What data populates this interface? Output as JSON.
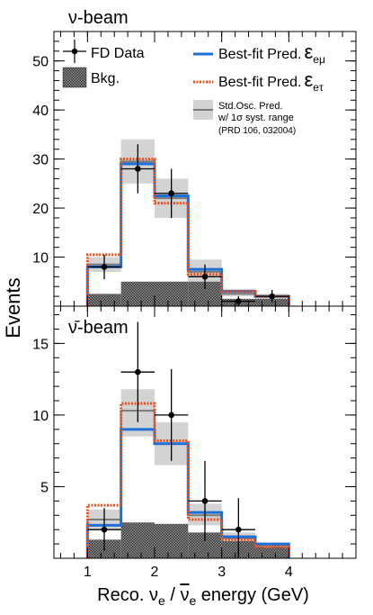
{
  "chart_data": [
    {
      "type": "step-histogram",
      "panel_label": "ν-beam",
      "x_edges": [
        1.0,
        1.5,
        2.0,
        2.5,
        3.0,
        3.5,
        4.0
      ],
      "ylim": [
        0,
        56
      ],
      "yticks": [
        10,
        20,
        30,
        40,
        50
      ],
      "ytick_labels": [
        "10",
        "20",
        "30",
        "40",
        "50"
      ],
      "data_points": {
        "x": [
          1.25,
          1.75,
          2.25,
          2.75,
          3.25,
          3.75
        ],
        "y": [
          8,
          28,
          23,
          6,
          1,
          2
        ],
        "yerr": [
          2.5,
          5.0,
          5.0,
          2.5,
          1.0,
          1.3
        ],
        "xerr": 0.25
      },
      "background": [
        2.5,
        5,
        5,
        5,
        1.5,
        1.5
      ],
      "best_fit_emu": [
        8,
        29,
        22.5,
        7.5,
        3,
        2
      ],
      "best_fit_etau": [
        10.5,
        30,
        21,
        6.5,
        3,
        2
      ],
      "std_osc": {
        "central": [
          8.5,
          29.5,
          22,
          7,
          2.5,
          2
        ],
        "band_low": [
          7,
          25,
          18,
          5,
          2,
          1.5
        ],
        "band_high": [
          10,
          34,
          26,
          9.5,
          3.5,
          2.5
        ]
      },
      "legend": {
        "data": "FD Data",
        "bkg": "Bkg.",
        "emu": "Best-fit Pred.",
        "emu_symbol": "ε",
        "emu_sub": "eμ",
        "etau": "Best-fit Pred.",
        "etau_symbol": "ε",
        "etau_sub": "eτ",
        "std_line1": "Std.Osc. Pred.",
        "std_line2": "w/ 1σ syst. range",
        "std_line3": "(PRD 106, 032004)"
      }
    },
    {
      "type": "step-histogram",
      "panel_label": "ν̄-beam",
      "x_edges": [
        1.0,
        1.5,
        2.0,
        2.5,
        3.0,
        3.5,
        4.0
      ],
      "ylim": [
        0,
        17.6
      ],
      "yticks": [
        5,
        10,
        15
      ],
      "ytick_labels": [
        "5",
        "10",
        "15"
      ],
      "data_points": {
        "x": [
          1.25,
          1.75,
          2.25,
          2.75,
          3.25
        ],
        "y": [
          2,
          13,
          10,
          4,
          2
        ],
        "yerr": [
          1.5,
          3.5,
          3.2,
          2.8,
          2.2
        ],
        "xerr": 0.25
      },
      "background": [
        1.3,
        2.5,
        2.4,
        1.8,
        1.2,
        0.8
      ],
      "best_fit_emu": [
        2.3,
        9,
        8,
        3.2,
        1.5,
        1
      ],
      "best_fit_etau": [
        3.7,
        10.8,
        8.2,
        2.7,
        1.3,
        0.8
      ],
      "std_osc": {
        "central": [
          2.7,
          10.3,
          8,
          3,
          1.4,
          0.9
        ],
        "band_low": [
          2,
          8.5,
          6.5,
          2.3,
          1,
          0.7
        ],
        "band_high": [
          3.4,
          11.8,
          9.5,
          3.8,
          1.8,
          1.1
        ]
      }
    }
  ],
  "shared_axes": {
    "xlabel": "Reco. νe / ν̄e energy (GeV)",
    "xlabel_parts": [
      "Reco. ν",
      "e",
      " / ",
      "ν",
      "e",
      " energy (GeV)"
    ],
    "ylabel": "Events",
    "xlim": [
      0.5,
      5.0
    ],
    "xticks": [
      1,
      2,
      3,
      4
    ],
    "xtick_labels": [
      "1",
      "2",
      "3",
      "4"
    ]
  },
  "colors": {
    "emu": "#1f6fd6",
    "etau": "#e8501e",
    "std_line": "#7a7a7a",
    "std_band": "#d3d3d3",
    "bkg": "#555555"
  }
}
